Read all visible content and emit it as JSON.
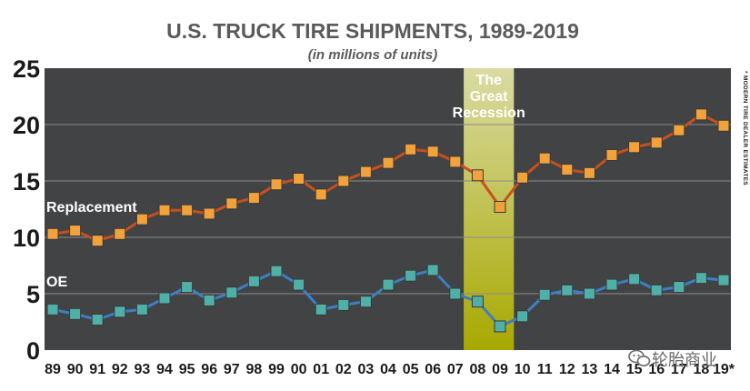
{
  "chart_data": {
    "type": "line",
    "title": "U.S. TRUCK TIRE SHIPMENTS, 1989-2019",
    "subtitle": "(in millions of units)",
    "categories": [
      "89",
      "90",
      "91",
      "92",
      "93",
      "94",
      "95",
      "96",
      "97",
      "98",
      "99",
      "00",
      "01",
      "02",
      "03",
      "04",
      "05",
      "06",
      "07",
      "08",
      "09",
      "10",
      "11",
      "12",
      "13",
      "14",
      "15",
      "16",
      "17",
      "18",
      "19*"
    ],
    "ylim": [
      0,
      25
    ],
    "yticks": [
      "0",
      "5",
      "10",
      "15",
      "20",
      "25"
    ],
    "ytick_values": [
      0,
      5,
      10,
      15,
      20,
      25
    ],
    "series": [
      {
        "name": "Replacement",
        "line_color": "#c8501e",
        "marker_color": "#f2a23a",
        "values": [
          10.3,
          10.6,
          9.7,
          10.3,
          11.6,
          12.4,
          12.4,
          12.1,
          13.0,
          13.5,
          14.7,
          15.2,
          13.8,
          15.0,
          15.8,
          16.6,
          17.8,
          17.6,
          16.7,
          15.5,
          12.7,
          15.3,
          17.0,
          16.0,
          15.7,
          17.3,
          18.0,
          18.4,
          19.5,
          20.9,
          19.9
        ]
      },
      {
        "name": "OE",
        "line_color": "#3d7fc4",
        "marker_color": "#4fb0a8",
        "values": [
          3.6,
          3.2,
          2.7,
          3.4,
          3.6,
          4.6,
          5.6,
          4.4,
          5.1,
          6.1,
          7.0,
          5.8,
          3.6,
          4.0,
          4.3,
          5.8,
          6.6,
          7.1,
          5.0,
          4.3,
          2.1,
          3.0,
          4.9,
          5.3,
          5.0,
          5.8,
          6.3,
          5.3,
          5.6,
          6.4,
          6.2
        ]
      }
    ],
    "annotation": {
      "lines": [
        "The",
        "Great",
        "Recession"
      ],
      "start_category": "08",
      "end_category": "09"
    },
    "side_note": "* MODERN TIRE DEALER ESTIMATES",
    "colors": {
      "plot_background": "#424345",
      "gridline": "#8c8c8c",
      "band_top": "#d9dba3",
      "band_bottom": "#a8a800"
    }
  },
  "watermark": {
    "icon": "wechat-icon",
    "text": "轮胎商业"
  }
}
